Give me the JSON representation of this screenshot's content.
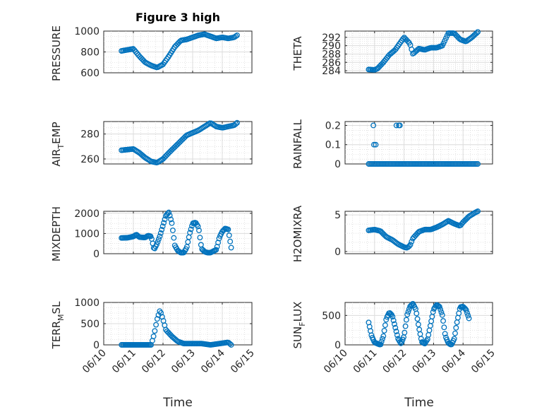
{
  "figure": {
    "title": "Figure 3 high",
    "marker_color": "#0072BD",
    "x_axis_label": "Time"
  },
  "chart_data": [
    {
      "type": "scatter",
      "id": "pressure",
      "ylabel": "PRESSURE",
      "ylim": [
        600,
        1000
      ],
      "yticks": [
        600,
        800,
        1000
      ],
      "xlim": [
        "06/10",
        "06/15"
      ],
      "xticks": [
        "06/10",
        "06/11",
        "06/12",
        "06/13",
        "06/14",
        "06/15"
      ],
      "grid": true,
      "anchors": [
        [
          10.6,
          810
        ],
        [
          10.8,
          820
        ],
        [
          11.0,
          830
        ],
        [
          11.2,
          760
        ],
        [
          11.4,
          700
        ],
        [
          11.6,
          670
        ],
        [
          11.8,
          650
        ],
        [
          12.0,
          680
        ],
        [
          12.2,
          760
        ],
        [
          12.4,
          850
        ],
        [
          12.6,
          910
        ],
        [
          12.8,
          920
        ],
        [
          13.0,
          940
        ],
        [
          13.2,
          960
        ],
        [
          13.4,
          970
        ],
        [
          13.6,
          950
        ],
        [
          13.8,
          930
        ],
        [
          14.0,
          940
        ],
        [
          14.2,
          930
        ],
        [
          14.4,
          940
        ],
        [
          14.5,
          960
        ]
      ],
      "point_count": 90
    },
    {
      "type": "scatter",
      "id": "theta",
      "ylabel": "THETA",
      "ylim": [
        283.5,
        293.5
      ],
      "yticks": [
        284,
        286,
        288,
        290,
        292
      ],
      "xlim": [
        "06/10",
        "06/15"
      ],
      "xticks": [
        "06/10",
        "06/11",
        "06/12",
        "06/13",
        "06/14",
        "06/15"
      ],
      "grid": true,
      "anchors": [
        [
          10.8,
          284.3
        ],
        [
          11.0,
          284.2
        ],
        [
          11.1,
          284.5
        ],
        [
          11.3,
          286
        ],
        [
          11.5,
          287.8
        ],
        [
          11.7,
          289
        ],
        [
          11.9,
          291
        ],
        [
          12.0,
          292
        ],
        [
          12.2,
          290.5
        ],
        [
          12.3,
          288
        ],
        [
          12.5,
          289.3
        ],
        [
          12.7,
          289
        ],
        [
          12.9,
          289.5
        ],
        [
          13.1,
          289.5
        ],
        [
          13.3,
          290
        ],
        [
          13.5,
          293
        ],
        [
          13.7,
          293
        ],
        [
          13.9,
          291.5
        ],
        [
          14.1,
          291
        ],
        [
          14.3,
          292
        ],
        [
          14.5,
          293.3
        ]
      ],
      "point_count": 90
    },
    {
      "type": "scatter",
      "id": "air_temp",
      "ylabel": "AIR_TEMP",
      "ylim": [
        256,
        290
      ],
      "yticks": [
        260,
        280
      ],
      "xlim": [
        "06/10",
        "06/15"
      ],
      "xticks": [
        "06/10",
        "06/11",
        "06/12",
        "06/13",
        "06/14",
        "06/15"
      ],
      "grid": true,
      "anchors": [
        [
          10.6,
          267
        ],
        [
          10.8,
          267.5
        ],
        [
          11.0,
          268
        ],
        [
          11.2,
          265
        ],
        [
          11.4,
          261
        ],
        [
          11.6,
          258
        ],
        [
          11.8,
          257
        ],
        [
          12.0,
          260
        ],
        [
          12.2,
          265
        ],
        [
          12.5,
          272
        ],
        [
          12.8,
          279
        ],
        [
          13.0,
          281
        ],
        [
          13.2,
          283
        ],
        [
          13.4,
          286
        ],
        [
          13.6,
          289
        ],
        [
          13.8,
          286
        ],
        [
          14.0,
          285
        ],
        [
          14.2,
          286
        ],
        [
          14.4,
          287
        ],
        [
          14.5,
          289
        ]
      ],
      "point_count": 90
    },
    {
      "type": "scatter",
      "id": "rainfall",
      "ylabel": "RAINFALL",
      "ylim": [
        0,
        0.22
      ],
      "yticks": [
        0,
        0.1,
        0.2
      ],
      "xlim": [
        "06/10",
        "06/15"
      ],
      "xticks": [
        "06/10",
        "06/11",
        "06/12",
        "06/13",
        "06/14",
        "06/15"
      ],
      "grid": true,
      "baseline": {
        "from": 10.8,
        "to": 14.5,
        "value": 0
      },
      "points": [
        [
          10.96,
          0.2
        ],
        [
          10.98,
          0.1
        ],
        [
          11.04,
          0.1
        ],
        [
          11.74,
          0.2
        ],
        [
          11.82,
          0.2
        ],
        [
          11.86,
          0.2
        ]
      ]
    },
    {
      "type": "scatter",
      "id": "mixdepth",
      "ylabel": "MIXDEPTH",
      "ylim": [
        0,
        2100
      ],
      "yticks": [
        0,
        1000,
        2000
      ],
      "xlim": [
        "06/10",
        "06/15"
      ],
      "xticks": [
        "06/10",
        "06/11",
        "06/12",
        "06/13",
        "06/14",
        "06/15"
      ],
      "grid": true,
      "anchors": [
        [
          10.6,
          780
        ],
        [
          10.8,
          790
        ],
        [
          11.0,
          850
        ],
        [
          11.1,
          950
        ],
        [
          11.2,
          820
        ],
        [
          11.4,
          800
        ],
        [
          11.5,
          900
        ],
        [
          11.6,
          850
        ],
        [
          11.7,
          200
        ],
        [
          11.8,
          500
        ],
        [
          11.9,
          900
        ],
        [
          12.0,
          1400
        ],
        [
          12.1,
          1900
        ],
        [
          12.2,
          2050
        ],
        [
          12.3,
          1500
        ],
        [
          12.4,
          400
        ],
        [
          12.5,
          150
        ],
        [
          12.6,
          50
        ],
        [
          12.7,
          50
        ],
        [
          12.8,
          300
        ],
        [
          12.9,
          1000
        ],
        [
          13.0,
          1500
        ],
        [
          13.1,
          1550
        ],
        [
          13.2,
          1300
        ],
        [
          13.3,
          250
        ],
        [
          13.4,
          100
        ],
        [
          13.5,
          50
        ],
        [
          13.6,
          50
        ],
        [
          13.8,
          200
        ],
        [
          13.9,
          800
        ],
        [
          14.0,
          1100
        ],
        [
          14.1,
          1250
        ],
        [
          14.2,
          1200
        ],
        [
          14.3,
          300
        ]
      ],
      "point_count": 110
    },
    {
      "type": "scatter",
      "id": "h2omixra",
      "ylabel": "H2OMIXRA",
      "ylim": [
        -0.3,
        5.5
      ],
      "yticks": [
        0,
        5
      ],
      "xlim": [
        "06/10",
        "06/15"
      ],
      "xticks": [
        "06/10",
        "06/11",
        "06/12",
        "06/13",
        "06/14",
        "06/15"
      ],
      "grid": true,
      "anchors": [
        [
          10.8,
          2.9
        ],
        [
          11.0,
          3.0
        ],
        [
          11.2,
          2.8
        ],
        [
          11.4,
          2.0
        ],
        [
          11.6,
          1.6
        ],
        [
          11.8,
          1.0
        ],
        [
          12.0,
          0.6
        ],
        [
          12.1,
          0.5
        ],
        [
          12.2,
          0.8
        ],
        [
          12.3,
          1.8
        ],
        [
          12.5,
          2.7
        ],
        [
          12.7,
          3.0
        ],
        [
          12.9,
          3.0
        ],
        [
          13.1,
          3.3
        ],
        [
          13.3,
          3.7
        ],
        [
          13.5,
          4.2
        ],
        [
          13.7,
          3.8
        ],
        [
          13.9,
          3.5
        ],
        [
          14.0,
          4.0
        ],
        [
          14.2,
          4.8
        ],
        [
          14.4,
          5.3
        ],
        [
          14.5,
          5.5
        ]
      ],
      "point_count": 90
    },
    {
      "type": "scatter",
      "id": "terr_msl",
      "ylabel": "TERR_MSL",
      "ylim": [
        0,
        1000
      ],
      "yticks": [
        0,
        500,
        1000
      ],
      "xlim": [
        "06/10",
        "06/15"
      ],
      "xticks": [
        "06/10",
        "06/11",
        "06/12",
        "06/13",
        "06/14",
        "06/15"
      ],
      "grid": true,
      "anchors": [
        [
          10.6,
          0
        ],
        [
          11.0,
          0
        ],
        [
          11.4,
          0
        ],
        [
          11.6,
          0
        ],
        [
          11.7,
          250
        ],
        [
          11.8,
          600
        ],
        [
          11.9,
          820
        ],
        [
          12.0,
          600
        ],
        [
          12.1,
          350
        ],
        [
          12.3,
          200
        ],
        [
          12.5,
          80
        ],
        [
          12.7,
          30
        ],
        [
          13.0,
          30
        ],
        [
          13.3,
          30
        ],
        [
          13.6,
          0
        ],
        [
          14.0,
          40
        ],
        [
          14.2,
          60
        ],
        [
          14.3,
          0
        ]
      ],
      "point_count": 90
    },
    {
      "type": "scatter",
      "id": "sun_flux",
      "ylabel": "SUN_FLUX",
      "ylim": [
        0,
        720
      ],
      "yticks": [
        0,
        500
      ],
      "xlim": [
        "06/10",
        "06/15"
      ],
      "xticks": [
        "06/10",
        "06/11",
        "06/12",
        "06/13",
        "06/14",
        "06/15"
      ],
      "grid": true,
      "anchors": [
        [
          10.8,
          380
        ],
        [
          10.9,
          150
        ],
        [
          11.0,
          40
        ],
        [
          11.1,
          20
        ],
        [
          11.2,
          0
        ],
        [
          11.3,
          150
        ],
        [
          11.4,
          450
        ],
        [
          11.5,
          550
        ],
        [
          11.6,
          500
        ],
        [
          11.7,
          300
        ],
        [
          11.8,
          100
        ],
        [
          11.9,
          20
        ],
        [
          12.0,
          150
        ],
        [
          12.1,
          500
        ],
        [
          12.2,
          650
        ],
        [
          12.3,
          700
        ],
        [
          12.4,
          600
        ],
        [
          12.5,
          300
        ],
        [
          12.6,
          50
        ],
        [
          12.7,
          20
        ],
        [
          12.8,
          100
        ],
        [
          12.9,
          350
        ],
        [
          13.0,
          600
        ],
        [
          13.1,
          680
        ],
        [
          13.2,
          650
        ],
        [
          13.3,
          500
        ],
        [
          13.4,
          150
        ],
        [
          13.5,
          30
        ],
        [
          13.6,
          0
        ],
        [
          13.7,
          100
        ],
        [
          13.8,
          400
        ],
        [
          13.9,
          640
        ],
        [
          14.0,
          650
        ],
        [
          14.1,
          600
        ],
        [
          14.2,
          450
        ]
      ],
      "point_count": 110
    }
  ]
}
